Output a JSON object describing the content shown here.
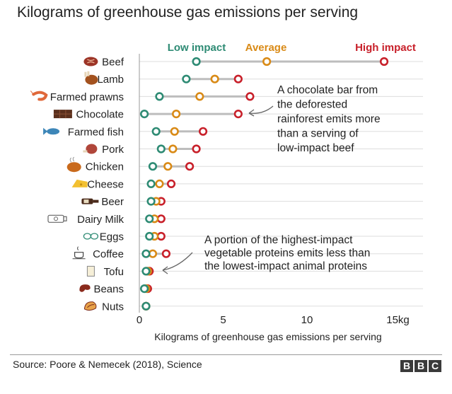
{
  "header": {
    "title": "Kilograms of greenhouse gas emissions per serving"
  },
  "colors": {
    "low": "#2e8b74",
    "average": "#d98a16",
    "high": "#c8202a",
    "line": "#bdbdbd",
    "grid": "#dddddd"
  },
  "chart_data": {
    "type": "dot-range",
    "title": "Kilograms of greenhouse gas emissions per serving",
    "xlabel": "Kilograms of greenhouse gas emissions per serving",
    "ylabel": "",
    "xlim": [
      0,
      16.5
    ],
    "x_ticks": [
      {
        "value": 0,
        "label": "0"
      },
      {
        "value": 5,
        "label": "5"
      },
      {
        "value": 10,
        "label": "10"
      },
      {
        "value": 15,
        "label": "15kg"
      }
    ],
    "legend": [
      {
        "key": "low",
        "label": "Low impact"
      },
      {
        "key": "average",
        "label": "Average"
      },
      {
        "key": "high",
        "label": "High impact"
      }
    ],
    "categories": [
      "Beef",
      "Lamb",
      "Farmed prawns",
      "Chocolate",
      "Farmed fish",
      "Pork",
      "Chicken",
      "Cheese",
      "Beer",
      "Dairy Milk",
      "Eggs",
      "Coffee",
      "Tofu",
      "Beans",
      "Nuts"
    ],
    "icons": [
      "steak-icon",
      "lamb-icon",
      "prawn-icon",
      "chocolate-icon",
      "fish-icon",
      "pork-icon",
      "chicken-icon",
      "cheese-icon",
      "beer-icon",
      "milk-icon",
      "eggs-icon",
      "coffee-icon",
      "tofu-icon",
      "beans-icon",
      "nuts-icon"
    ],
    "series": [
      {
        "name": "Low impact",
        "key": "low",
        "values": [
          3.4,
          2.8,
          1.2,
          0.3,
          1.0,
          1.3,
          0.8,
          0.7,
          0.7,
          0.6,
          0.6,
          0.4,
          0.4,
          0.3,
          0.4
        ]
      },
      {
        "name": "Average",
        "key": "average",
        "values": [
          7.6,
          4.5,
          3.6,
          2.2,
          2.1,
          2.0,
          1.7,
          1.2,
          1.0,
          0.9,
          0.9,
          0.8,
          0.5,
          0.4,
          0.4
        ]
      },
      {
        "name": "High impact",
        "key": "high",
        "values": [
          14.6,
          5.9,
          6.6,
          5.9,
          3.8,
          3.4,
          3.0,
          1.9,
          1.3,
          1.3,
          1.3,
          1.6,
          0.6,
          0.5,
          0.4
        ]
      }
    ],
    "annotations": [
      {
        "lines": [
          "A chocolate bar from",
          "the deforested",
          "rainforest emits more",
          "than a serving of",
          "low-impact beef"
        ],
        "points_to": "Chocolate"
      },
      {
        "lines": [
          "A portion of the highest-impact",
          "vegetable proteins emits less than",
          "the lowest-impact animal proteins"
        ],
        "points_to": "Tofu"
      }
    ]
  },
  "footer": {
    "source": "Source: Poore & Nemecek (2018), Science",
    "logo": [
      "B",
      "B",
      "C"
    ]
  }
}
